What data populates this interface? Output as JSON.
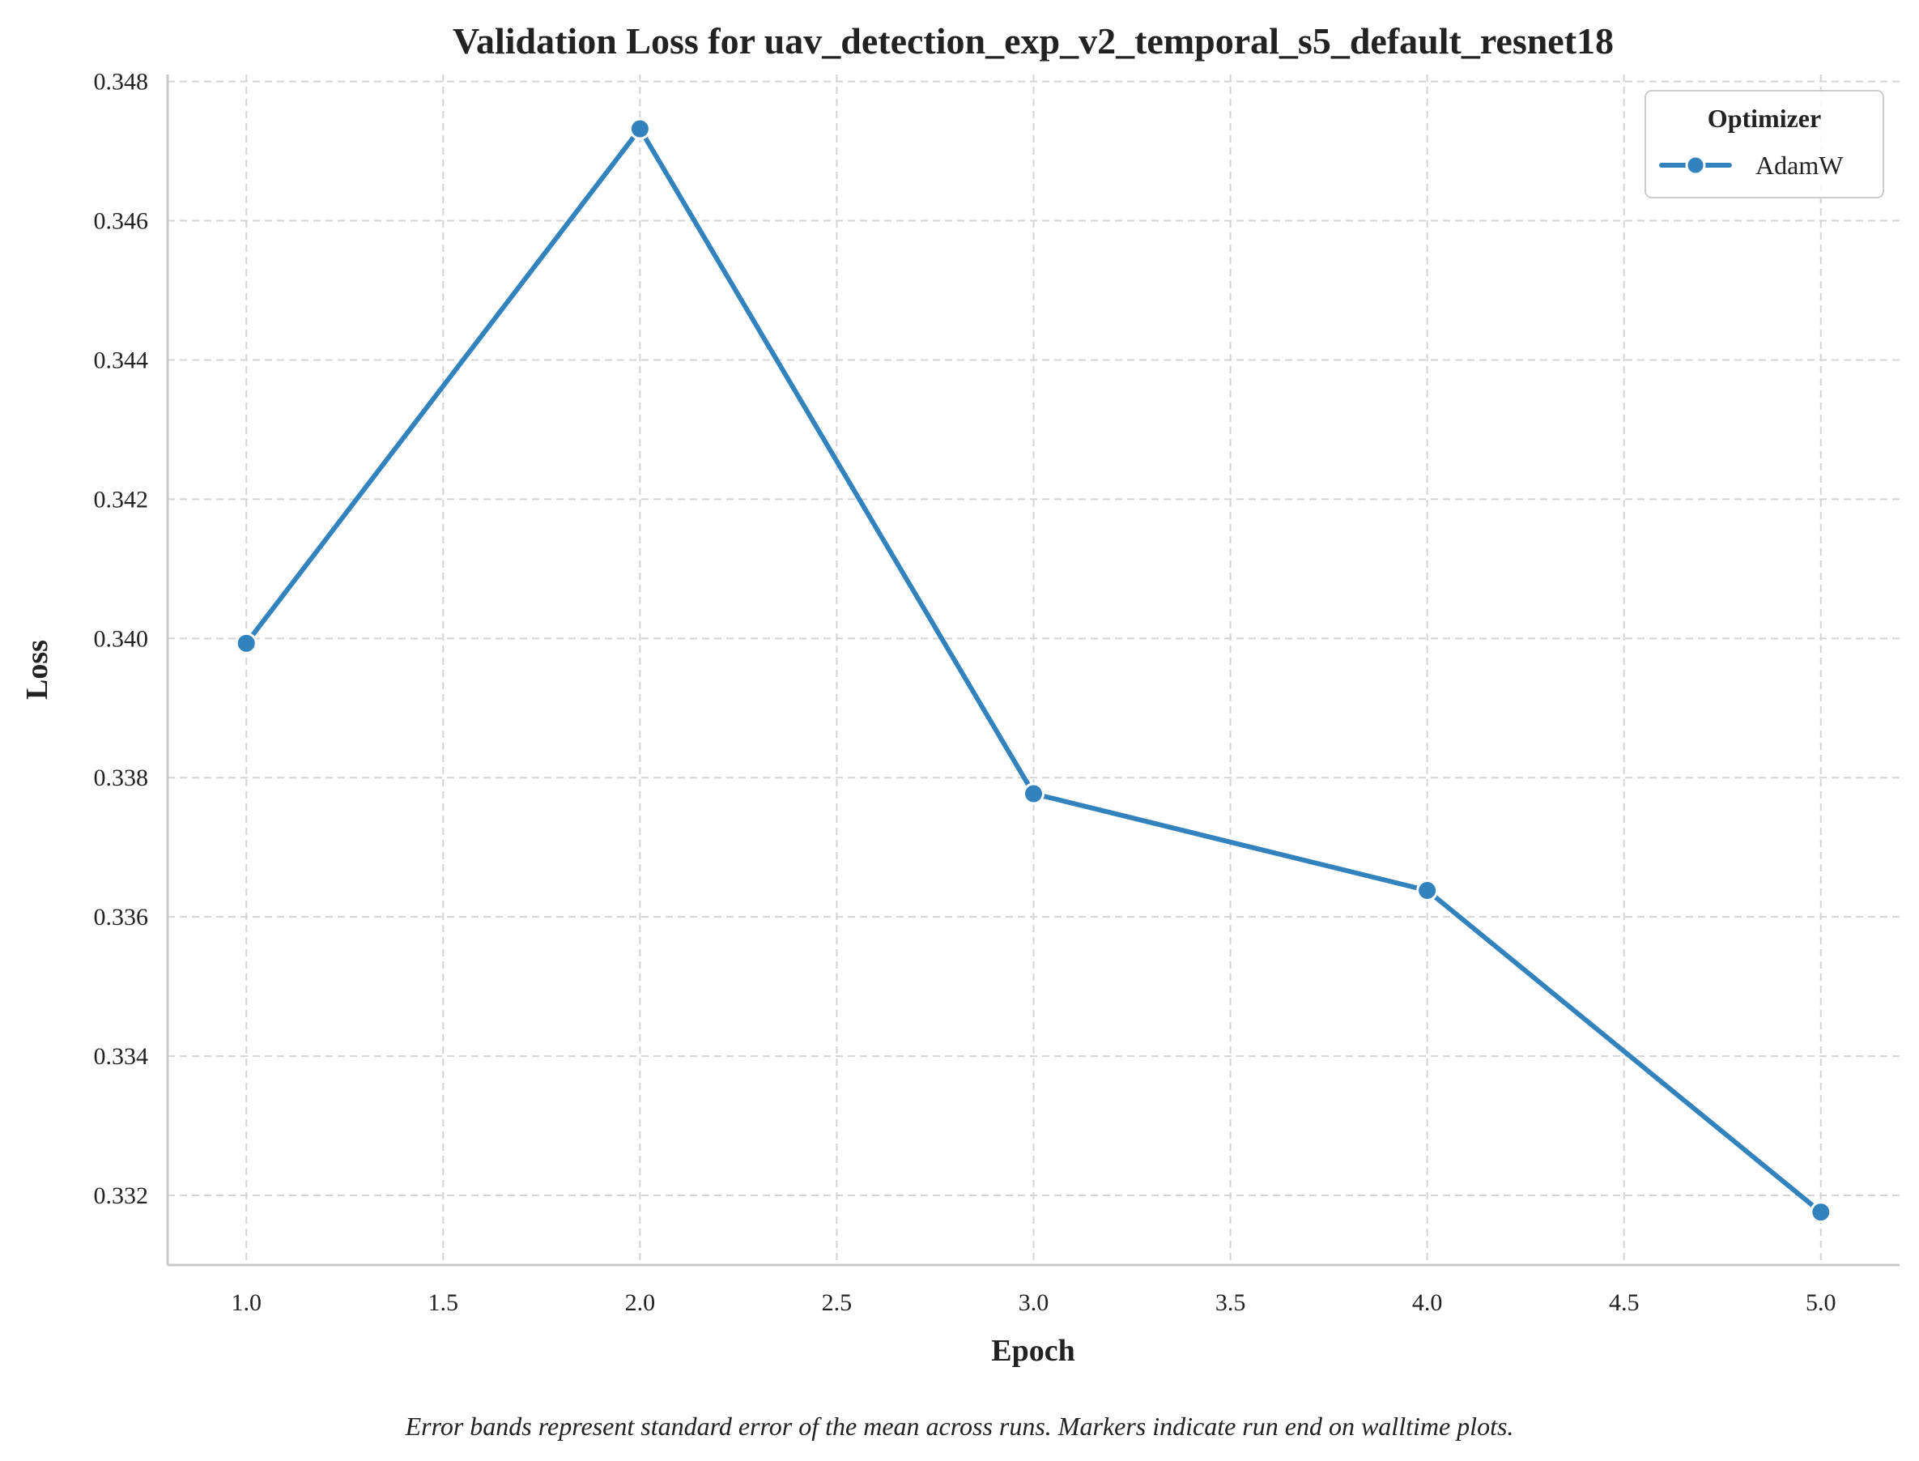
{
  "chart_data": {
    "type": "line",
    "title": "Validation Loss for uav_detection_exp_v2_temporal_s5_default_resnet18",
    "xlabel": "Epoch",
    "ylabel": "Loss",
    "xlim": [
      0.8,
      5.2
    ],
    "ylim": [
      0.331,
      0.3481
    ],
    "x_ticks": [
      1.0,
      1.5,
      2.0,
      2.5,
      3.0,
      3.5,
      4.0,
      4.5,
      5.0
    ],
    "x_tick_labels": [
      "1.0",
      "1.5",
      "2.0",
      "2.5",
      "3.0",
      "3.5",
      "4.0",
      "4.5",
      "5.0"
    ],
    "y_ticks": [
      0.332,
      0.334,
      0.336,
      0.338,
      0.34,
      0.342,
      0.344,
      0.346,
      0.348
    ],
    "y_tick_labels": [
      "0.332",
      "0.334",
      "0.336",
      "0.338",
      "0.340",
      "0.342",
      "0.344",
      "0.346",
      "0.348"
    ],
    "grid": true,
    "legend": {
      "title": "Optimizer",
      "placement": "top-right"
    },
    "series": [
      {
        "name": "AdamW",
        "color": "#3182bd",
        "x": [
          1,
          2,
          3,
          4,
          5
        ],
        "y": [
          0.33993,
          0.34732,
          0.33777,
          0.33638,
          0.33176
        ]
      }
    ],
    "caption": "Error bands represent standard error of the mean across runs. Markers indicate run end on walltime plots."
  }
}
